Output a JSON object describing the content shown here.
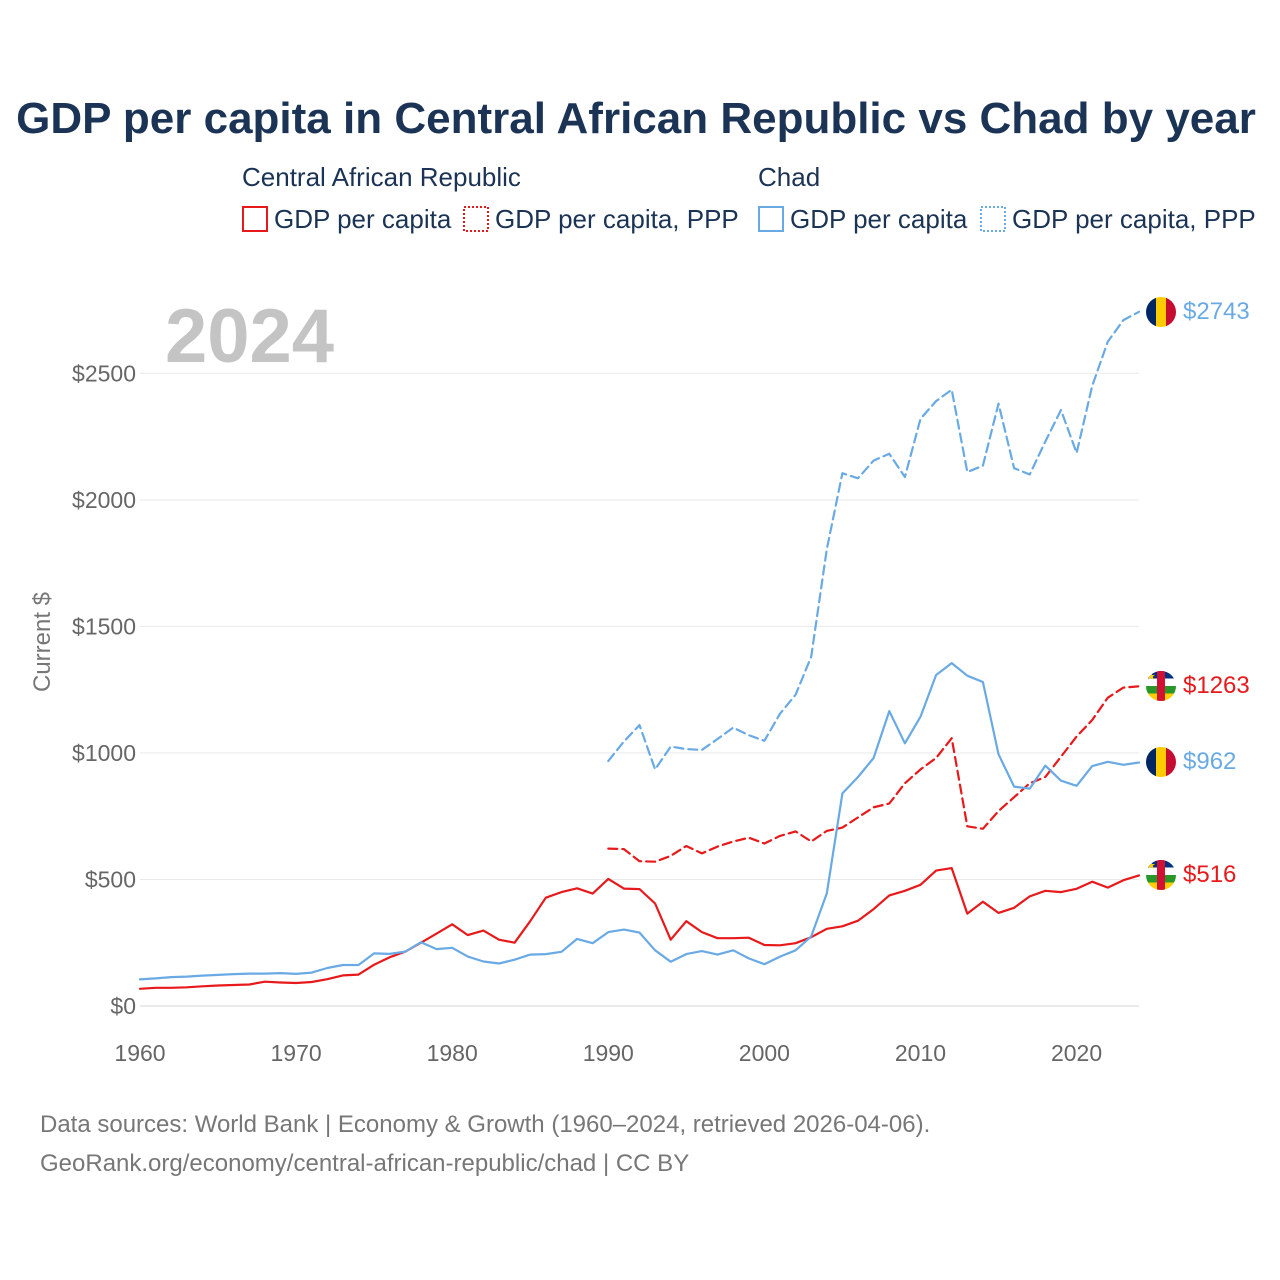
{
  "chart_data": {
    "type": "line",
    "title": "GDP per capita in Central African Republic vs Chad by year",
    "ylabel": "Current $",
    "xlabel": "",
    "xlim": [
      1960,
      2024
    ],
    "ylim": [
      0,
      2750
    ],
    "x_ticks": [
      1960,
      1970,
      1980,
      1990,
      2000,
      2010,
      2020
    ],
    "y_ticks": [
      0,
      500,
      1000,
      1500,
      2000,
      2500
    ],
    "y_tick_labels": [
      "$0",
      "$500",
      "$1000",
      "$1500",
      "$2000",
      "$2500"
    ],
    "grid": true,
    "year_label": "2024",
    "legend": {
      "placement": "top",
      "groups": [
        {
          "country": "Central African Republic",
          "color": "#e8191b",
          "items": [
            {
              "label": "GDP per capita",
              "style": "solid"
            },
            {
              "label": "GDP per capita, PPP",
              "style": "dotted"
            }
          ]
        },
        {
          "country": "Chad",
          "color": "#6aaae4",
          "items": [
            {
              "label": "GDP per capita",
              "style": "solid"
            },
            {
              "label": "GDP per capita, PPP",
              "style": "dotted"
            }
          ]
        }
      ]
    },
    "series": [
      {
        "name": "Central African Republic GDP per capita",
        "country": "Central African Republic",
        "color": "#e8191b",
        "dash": false,
        "x": [
          1960,
          1961,
          1962,
          1963,
          1964,
          1965,
          1966,
          1967,
          1968,
          1969,
          1970,
          1971,
          1972,
          1973,
          1974,
          1975,
          1976,
          1977,
          1978,
          1979,
          1980,
          1981,
          1982,
          1983,
          1984,
          1985,
          1986,
          1987,
          1988,
          1989,
          1990,
          1991,
          1992,
          1993,
          1994,
          1995,
          1996,
          1997,
          1998,
          1999,
          2000,
          2001,
          2002,
          2003,
          2004,
          2005,
          2006,
          2007,
          2008,
          2009,
          2010,
          2011,
          2012,
          2013,
          2014,
          2015,
          2016,
          2017,
          2018,
          2019,
          2020,
          2021,
          2022,
          2023,
          2024
        ],
        "values": [
          68,
          72,
          72,
          74,
          78,
          81,
          83,
          85,
          96,
          93,
          91,
          95,
          106,
          121,
          124,
          163,
          193,
          215,
          250,
          286,
          323,
          280,
          298,
          262,
          250,
          335,
          428,
          450,
          465,
          444,
          502,
          464,
          462,
          405,
          262,
          335,
          292,
          268,
          268,
          270,
          241,
          240,
          248,
          272,
          305,
          315,
          337,
          383,
          437,
          455,
          479,
          535,
          545,
          365,
          412,
          368,
          388,
          433,
          455,
          450,
          463,
          491,
          468,
          497,
          516
        ]
      },
      {
        "name": "Central African Republic GDP per capita, PPP",
        "country": "Central African Republic",
        "color": "#e8191b",
        "dash": true,
        "x": [
          1990,
          1991,
          1992,
          1993,
          1994,
          1995,
          1996,
          1997,
          1998,
          1999,
          2000,
          2001,
          2002,
          2003,
          2004,
          2005,
          2006,
          2007,
          2008,
          2009,
          2010,
          2011,
          2012,
          2013,
          2014,
          2015,
          2016,
          2017,
          2018,
          2019,
          2020,
          2021,
          2022,
          2023,
          2024
        ],
        "values": [
          622,
          620,
          572,
          570,
          593,
          632,
          603,
          630,
          650,
          665,
          642,
          672,
          690,
          650,
          692,
          705,
          745,
          785,
          800,
          880,
          935,
          980,
          1058,
          710,
          700,
          770,
          825,
          880,
          905,
          985,
          1065,
          1130,
          1218,
          1258,
          1263
        ]
      },
      {
        "name": "Chad GDP per capita",
        "country": "Chad",
        "color": "#6aaae4",
        "dash": false,
        "x": [
          1960,
          1961,
          1962,
          1963,
          1964,
          1965,
          1966,
          1967,
          1968,
          1969,
          1970,
          1971,
          1972,
          1973,
          1974,
          1975,
          1976,
          1977,
          1978,
          1979,
          1980,
          1981,
          1982,
          1983,
          1984,
          1985,
          1986,
          1987,
          1988,
          1989,
          1990,
          1991,
          1992,
          1993,
          1994,
          1995,
          1996,
          1997,
          1998,
          1999,
          2000,
          2001,
          2002,
          2003,
          2004,
          2005,
          2006,
          2007,
          2008,
          2009,
          2010,
          2011,
          2012,
          2013,
          2014,
          2015,
          2016,
          2017,
          2018,
          2019,
          2020,
          2021,
          2022,
          2023,
          2024
        ],
        "values": [
          105,
          109,
          114,
          116,
          120,
          123,
          126,
          128,
          128,
          130,
          127,
          132,
          150,
          162,
          162,
          208,
          206,
          215,
          252,
          225,
          230,
          195,
          176,
          168,
          183,
          203,
          205,
          214,
          265,
          248,
          292,
          302,
          290,
          220,
          175,
          205,
          217,
          203,
          220,
          188,
          165,
          195,
          220,
          275,
          445,
          840,
          905,
          980,
          1165,
          1038,
          1143,
          1308,
          1355,
          1305,
          1280,
          995,
          867,
          859,
          950,
          890,
          870,
          948,
          965,
          953,
          962
        ]
      },
      {
        "name": "Chad GDP per capita, PPP",
        "country": "Chad",
        "color": "#6aaae4",
        "dash": true,
        "x": [
          1990,
          1991,
          1992,
          1993,
          1994,
          1995,
          1996,
          1997,
          1998,
          1999,
          2000,
          2001,
          2002,
          2003,
          2004,
          2005,
          2006,
          2007,
          2008,
          2009,
          2010,
          2011,
          2012,
          2013,
          2014,
          2015,
          2016,
          2017,
          2018,
          2019,
          2020,
          2021,
          2022,
          2023,
          2024
        ],
        "values": [
          968,
          1045,
          1110,
          935,
          1025,
          1015,
          1012,
          1055,
          1100,
          1070,
          1048,
          1155,
          1230,
          1380,
          1805,
          2105,
          2085,
          2155,
          2182,
          2090,
          2320,
          2390,
          2435,
          2110,
          2135,
          2380,
          2125,
          2100,
          2230,
          2355,
          2185,
          2450,
          2625,
          2710,
          2743
        ]
      }
    ],
    "end_labels": [
      {
        "country": "Chad",
        "metric": "GDP per capita, PPP",
        "text": "$2743",
        "value": 2743,
        "color": "#6aaae4"
      },
      {
        "country": "Central African Republic",
        "metric": "GDP per capita, PPP",
        "text": "$1263",
        "value": 1263,
        "color": "#e8191b"
      },
      {
        "country": "Chad",
        "metric": "GDP per capita",
        "text": "$962",
        "value": 962,
        "color": "#6aaae4"
      },
      {
        "country": "Central African Republic",
        "metric": "GDP per capita",
        "text": "$516",
        "value": 516,
        "color": "#e8191b"
      }
    ]
  },
  "footer": {
    "source_line1": "Data sources: World Bank | Economy & Growth (1960–2024, retrieved 2026-04-06).",
    "source_line2": "GeoRank.org/economy/central-african-republic/chad | CC BY"
  }
}
